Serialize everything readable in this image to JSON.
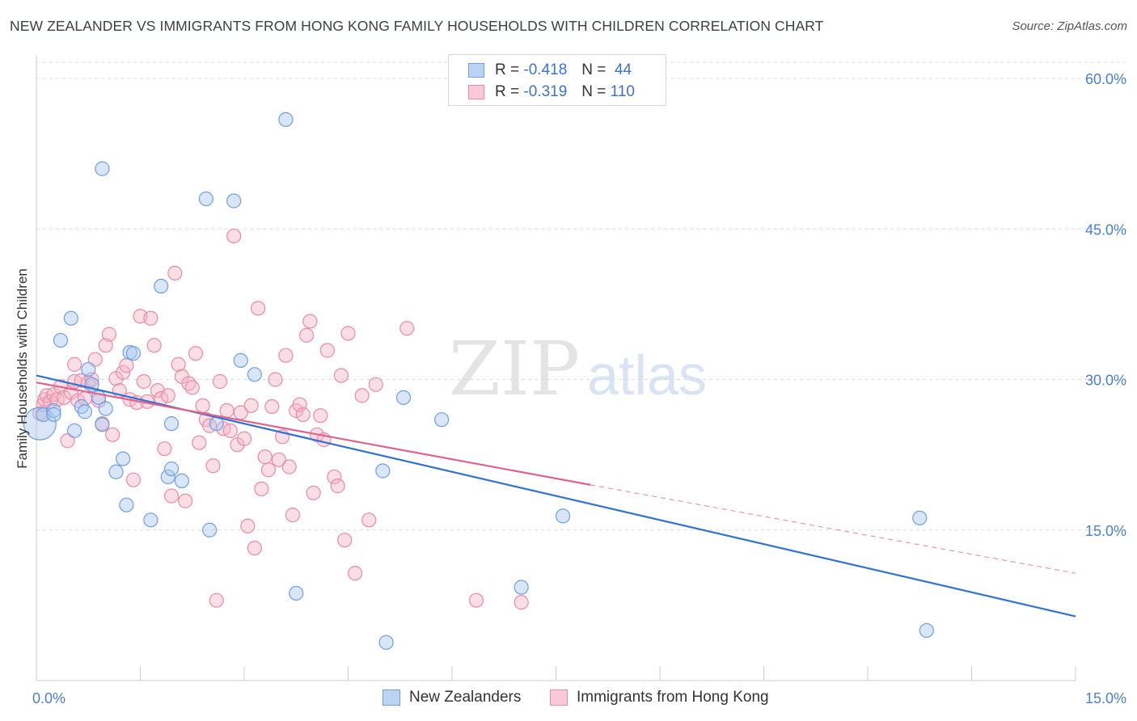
{
  "title": "NEW ZEALANDER VS IMMIGRANTS FROM HONG KONG FAMILY HOUSEHOLDS WITH CHILDREN CORRELATION CHART",
  "source": "Source: ZipAtlas.com",
  "watermark": {
    "zip": "ZIP",
    "atlas": "atlas"
  },
  "legend": {
    "rows": [
      {
        "r_label": "R =",
        "r_value": "-0.418",
        "n_label": "N =",
        "n_value": "44"
      },
      {
        "r_label": "R =",
        "r_value": "-0.319",
        "n_label": "N =",
        "n_value": "110"
      }
    ]
  },
  "bottom_legend": [
    "New Zealanders",
    "Immigrants from Hong Kong"
  ],
  "colors": {
    "blue_fill": "#a9c8f0",
    "blue_stroke": "#6f9fe0",
    "blue_line": "#2f72d0",
    "pink_fill": "#f5b5c8",
    "pink_stroke": "#e98aa8",
    "pink_line": "#e0628c",
    "axis_text": "#4a7fd0",
    "grid": "#dcdcdc"
  },
  "chart_data": {
    "type": "scatter",
    "xlabel": "",
    "ylabel": "Family Households with Children",
    "xlim": [
      0,
      15
    ],
    "ylim": [
      0,
      60
    ],
    "x_tick_labels": [
      {
        "value": 0,
        "label": "0.0%"
      },
      {
        "value": 15,
        "label": "15.0%"
      }
    ],
    "y_tick_labels": [
      {
        "value": 15,
        "label": "15.0%"
      },
      {
        "value": 30,
        "label": "30.0%"
      },
      {
        "value": 45,
        "label": "45.0%"
      },
      {
        "value": 60,
        "label": "60.0%"
      }
    ],
    "grid": true,
    "legend_position": "top-center",
    "series": [
      {
        "name": "New Zealanders",
        "color": "#a9c8f0",
        "trend": {
          "x": [
            0,
            15
          ],
          "y": [
            30.4,
            6.4
          ],
          "dashed_extension": false
        },
        "points": [
          [
            0.05,
            25.6,
            "large"
          ],
          [
            0.1,
            26.5
          ],
          [
            0.25,
            26.9
          ],
          [
            0.25,
            26.5
          ],
          [
            0.35,
            33.9
          ],
          [
            0.5,
            36.1
          ],
          [
            0.55,
            24.9
          ],
          [
            0.65,
            27.3
          ],
          [
            0.7,
            26.8
          ],
          [
            0.75,
            31.0
          ],
          [
            0.8,
            29.5
          ],
          [
            0.9,
            28.2
          ],
          [
            0.95,
            25.5
          ],
          [
            1.0,
            27.1
          ],
          [
            0.95,
            51.0
          ],
          [
            1.15,
            20.8
          ],
          [
            1.25,
            22.1
          ],
          [
            1.3,
            17.5
          ],
          [
            1.35,
            32.7
          ],
          [
            1.4,
            32.6
          ],
          [
            1.65,
            16.0
          ],
          [
            1.8,
            39.3
          ],
          [
            1.9,
            20.3
          ],
          [
            1.95,
            21.1
          ],
          [
            1.95,
            25.6
          ],
          [
            2.1,
            19.9
          ],
          [
            2.45,
            48.0
          ],
          [
            2.5,
            15.0
          ],
          [
            2.6,
            25.6
          ],
          [
            2.85,
            47.8
          ],
          [
            2.95,
            31.9
          ],
          [
            3.15,
            30.5
          ],
          [
            3.6,
            55.9
          ],
          [
            3.75,
            8.7
          ],
          [
            5.0,
            20.9
          ],
          [
            5.05,
            3.8
          ],
          [
            5.3,
            28.2
          ],
          [
            5.85,
            26.0
          ],
          [
            7.0,
            9.3
          ],
          [
            7.6,
            16.4
          ],
          [
            12.75,
            16.2
          ],
          [
            12.85,
            5.0
          ]
        ]
      },
      {
        "name": "Immigrants from Hong Kong",
        "color": "#f5b5c8",
        "trend": {
          "x": [
            0,
            8.0
          ],
          "y": [
            29.7,
            19.5
          ],
          "dashed_extension": true,
          "dashed_to": [
            15,
            10.7
          ]
        },
        "points": [
          [
            0.05,
            26.6
          ],
          [
            0.1,
            27.5
          ],
          [
            0.12,
            28.0
          ],
          [
            0.15,
            28.4
          ],
          [
            0.2,
            27.8
          ],
          [
            0.25,
            28.5
          ],
          [
            0.3,
            28.0
          ],
          [
            0.35,
            29.3
          ],
          [
            0.4,
            28.2
          ],
          [
            0.45,
            23.9
          ],
          [
            0.5,
            28.7
          ],
          [
            0.55,
            29.8
          ],
          [
            0.55,
            31.5
          ],
          [
            0.6,
            27.9
          ],
          [
            0.65,
            29.9
          ],
          [
            0.7,
            28.1
          ],
          [
            0.75,
            29.7
          ],
          [
            0.8,
            30.0
          ],
          [
            0.85,
            32.0
          ],
          [
            0.9,
            27.9
          ],
          [
            0.95,
            25.6
          ],
          [
            1.0,
            33.4
          ],
          [
            1.05,
            34.5
          ],
          [
            1.1,
            24.5
          ],
          [
            1.15,
            30.1
          ],
          [
            1.2,
            28.9
          ],
          [
            1.25,
            30.7
          ],
          [
            1.3,
            31.4
          ],
          [
            1.35,
            28.0
          ],
          [
            1.4,
            20.0
          ],
          [
            1.45,
            27.7
          ],
          [
            1.5,
            36.3
          ],
          [
            1.55,
            29.8
          ],
          [
            1.6,
            27.8
          ],
          [
            1.65,
            36.1
          ],
          [
            1.7,
            33.4
          ],
          [
            1.75,
            28.9
          ],
          [
            1.8,
            28.1
          ],
          [
            1.85,
            23.1
          ],
          [
            1.9,
            28.4
          ],
          [
            1.95,
            18.4
          ],
          [
            2.0,
            40.6
          ],
          [
            2.05,
            31.5
          ],
          [
            2.1,
            30.3
          ],
          [
            2.15,
            17.9
          ],
          [
            2.2,
            29.6
          ],
          [
            2.25,
            29.2
          ],
          [
            2.3,
            32.6
          ],
          [
            2.35,
            23.7
          ],
          [
            2.4,
            27.4
          ],
          [
            2.45,
            26.0
          ],
          [
            2.5,
            25.4
          ],
          [
            2.55,
            21.4
          ],
          [
            2.6,
            8.0
          ],
          [
            2.65,
            29.8
          ],
          [
            2.7,
            25.1
          ],
          [
            2.75,
            26.9
          ],
          [
            2.8,
            24.9
          ],
          [
            2.85,
            44.3
          ],
          [
            2.9,
            23.5
          ],
          [
            2.95,
            26.7
          ],
          [
            3.0,
            24.1
          ],
          [
            3.05,
            15.4
          ],
          [
            3.1,
            27.4
          ],
          [
            3.15,
            13.2
          ],
          [
            3.2,
            37.1
          ],
          [
            3.25,
            19.1
          ],
          [
            3.3,
            22.3
          ],
          [
            3.35,
            21.0
          ],
          [
            3.4,
            27.3
          ],
          [
            3.45,
            30.0
          ],
          [
            3.5,
            22.0
          ],
          [
            3.55,
            24.3
          ],
          [
            3.6,
            32.4
          ],
          [
            3.65,
            21.3
          ],
          [
            3.7,
            16.5
          ],
          [
            3.75,
            26.9
          ],
          [
            3.8,
            27.5
          ],
          [
            3.85,
            26.5
          ],
          [
            3.9,
            34.4
          ],
          [
            3.95,
            35.8
          ],
          [
            4.0,
            18.7
          ],
          [
            4.05,
            24.5
          ],
          [
            4.1,
            26.4
          ],
          [
            4.15,
            24.0
          ],
          [
            4.2,
            32.9
          ],
          [
            4.3,
            20.3
          ],
          [
            4.35,
            19.4
          ],
          [
            4.4,
            30.4
          ],
          [
            4.45,
            14.0
          ],
          [
            4.5,
            34.6
          ],
          [
            4.6,
            10.7
          ],
          [
            4.7,
            28.4
          ],
          [
            4.8,
            16.0
          ],
          [
            4.9,
            29.5
          ],
          [
            5.35,
            35.1
          ],
          [
            6.35,
            8.0
          ],
          [
            7.0,
            7.8
          ]
        ]
      }
    ]
  }
}
